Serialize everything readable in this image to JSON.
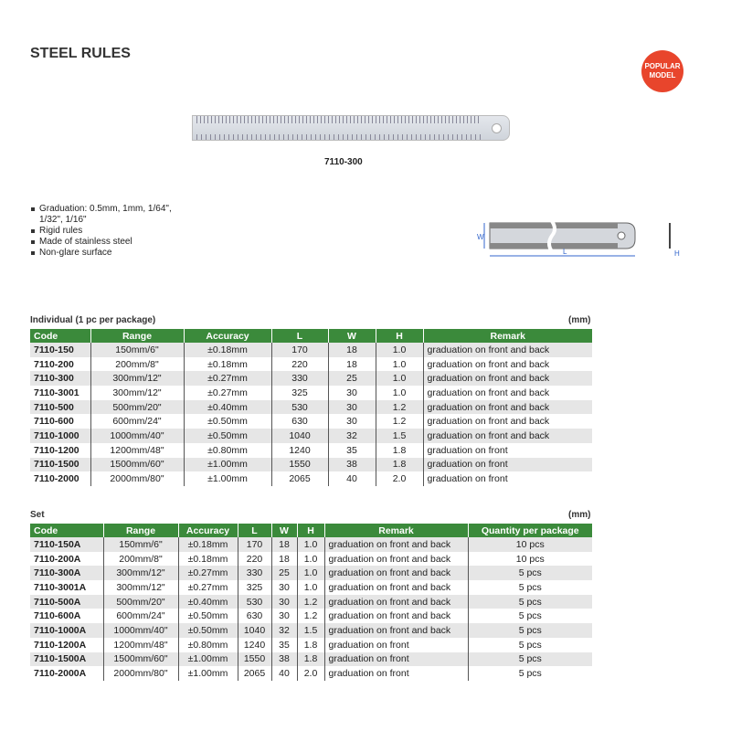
{
  "title": "STEEL RULES",
  "badge": "POPULAR MODEL",
  "badge_color": "#e8452c",
  "header_color": "#3b8a3b",
  "product_image_label": "7110-300",
  "features": [
    "Graduation: 0.5mm, 1mm, 1/64\", 1/32\", 1/16\"",
    "Rigid rules",
    "Made of stainless steel",
    "Non-glare surface"
  ],
  "diagram_labels": {
    "w": "W",
    "l": "L",
    "h": "H"
  },
  "individual": {
    "caption": "Individual (1 pc per package)",
    "unit": "(mm)",
    "headers": [
      "Code",
      "Range",
      "Accuracy",
      "L",
      "W",
      "H",
      "Remark"
    ],
    "rows": [
      [
        "7110-150",
        "150mm/6\"",
        "±0.18mm",
        "170",
        "18",
        "1.0",
        "graduation on front and back"
      ],
      [
        "7110-200",
        "200mm/8\"",
        "±0.18mm",
        "220",
        "18",
        "1.0",
        "graduation on front and back"
      ],
      [
        "7110-300",
        "300mm/12\"",
        "±0.27mm",
        "330",
        "25",
        "1.0",
        "graduation on front and back"
      ],
      [
        "7110-3001",
        "300mm/12\"",
        "±0.27mm",
        "325",
        "30",
        "1.0",
        "graduation on front and back"
      ],
      [
        "7110-500",
        "500mm/20\"",
        "±0.40mm",
        "530",
        "30",
        "1.2",
        "graduation on front and back"
      ],
      [
        "7110-600",
        "600mm/24\"",
        "±0.50mm",
        "630",
        "30",
        "1.2",
        "graduation on front and back"
      ],
      [
        "7110-1000",
        "1000mm/40\"",
        "±0.50mm",
        "1040",
        "32",
        "1.5",
        "graduation on front and back"
      ],
      [
        "7110-1200",
        "1200mm/48\"",
        "±0.80mm",
        "1240",
        "35",
        "1.8",
        "graduation on front"
      ],
      [
        "7110-1500",
        "1500mm/60\"",
        "±1.00mm",
        "1550",
        "38",
        "1.8",
        "graduation on front"
      ],
      [
        "7110-2000",
        "2000mm/80\"",
        "±1.00mm",
        "2065",
        "40",
        "2.0",
        "graduation on front"
      ]
    ]
  },
  "set": {
    "caption": "Set",
    "unit": "(mm)",
    "headers": [
      "Code",
      "Range",
      "Accuracy",
      "L",
      "W",
      "H",
      "Remark",
      "Quantity per package"
    ],
    "rows": [
      [
        "7110-150A",
        "150mm/6\"",
        "±0.18mm",
        "170",
        "18",
        "1.0",
        "graduation on front and back",
        "10 pcs"
      ],
      [
        "7110-200A",
        "200mm/8\"",
        "±0.18mm",
        "220",
        "18",
        "1.0",
        "graduation on front and back",
        "10 pcs"
      ],
      [
        "7110-300A",
        "300mm/12\"",
        "±0.27mm",
        "330",
        "25",
        "1.0",
        "graduation on front and back",
        "5 pcs"
      ],
      [
        "7110-3001A",
        "300mm/12\"",
        "±0.27mm",
        "325",
        "30",
        "1.0",
        "graduation on front and back",
        "5 pcs"
      ],
      [
        "7110-500A",
        "500mm/20\"",
        "±0.40mm",
        "530",
        "30",
        "1.2",
        "graduation on front and back",
        "5 pcs"
      ],
      [
        "7110-600A",
        "600mm/24\"",
        "±0.50mm",
        "630",
        "30",
        "1.2",
        "graduation on front and back",
        "5 pcs"
      ],
      [
        "7110-1000A",
        "1000mm/40\"",
        "±0.50mm",
        "1040",
        "32",
        "1.5",
        "graduation on front and back",
        "5 pcs"
      ],
      [
        "7110-1200A",
        "1200mm/48\"",
        "±0.80mm",
        "1240",
        "35",
        "1.8",
        "graduation on front",
        "5 pcs"
      ],
      [
        "7110-1500A",
        "1500mm/60\"",
        "±1.00mm",
        "1550",
        "38",
        "1.8",
        "graduation on front",
        "5 pcs"
      ],
      [
        "7110-2000A",
        "2000mm/80\"",
        "±1.00mm",
        "2065",
        "40",
        "2.0",
        "graduation on front",
        "5 pcs"
      ]
    ]
  }
}
